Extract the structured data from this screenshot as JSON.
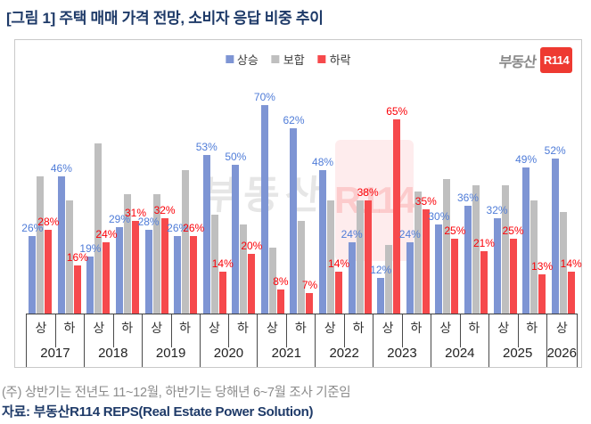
{
  "title": "[그림 1] 주택 매매 가격 전망, 소비자 응답 비중 추이",
  "legend": {
    "items": [
      {
        "label": "상승",
        "color": "#7e95d4"
      },
      {
        "label": "보합",
        "color": "#bfbfbf"
      },
      {
        "label": "하락",
        "color": "#f6494c"
      }
    ]
  },
  "logo": {
    "brand": "부동산",
    "mark": "R114"
  },
  "watermark": {
    "text": "부동산",
    "mark": "R114"
  },
  "chart_data": {
    "type": "bar",
    "unit": "%",
    "gridlines": false,
    "legend_position": "top",
    "ylim": [
      0,
      75
    ],
    "categories": [
      {
        "year": "2017",
        "half": "상"
      },
      {
        "year": "2017",
        "half": "하"
      },
      {
        "year": "2018",
        "half": "상"
      },
      {
        "year": "2018",
        "half": "하"
      },
      {
        "year": "2019",
        "half": "상"
      },
      {
        "year": "2019",
        "half": "하"
      },
      {
        "year": "2020",
        "half": "상"
      },
      {
        "year": "2020",
        "half": "하"
      },
      {
        "year": "2021",
        "half": "상"
      },
      {
        "year": "2021",
        "half": "하"
      },
      {
        "year": "2022",
        "half": "상"
      },
      {
        "year": "2022",
        "half": "하"
      },
      {
        "year": "2023",
        "half": "상"
      },
      {
        "year": "2023",
        "half": "하"
      },
      {
        "year": "2024",
        "half": "상"
      },
      {
        "year": "2024",
        "half": "하"
      },
      {
        "year": "2025",
        "half": "상"
      },
      {
        "year": "2025",
        "half": "하"
      },
      {
        "year": "2026",
        "half": "상"
      }
    ],
    "series": [
      {
        "name": "상승",
        "color": "#7e95d4",
        "label_color": "#4f7cd8",
        "show_labels": true,
        "values": [
          26,
          46,
          19,
          29,
          28,
          26,
          53,
          50,
          70,
          62,
          48,
          24,
          12,
          24,
          30,
          36,
          32,
          49,
          52
        ]
      },
      {
        "name": "보합",
        "color": "#bfbfbf",
        "label_color": "#808080",
        "show_labels": false,
        "values": [
          46,
          38,
          57,
          40,
          40,
          48,
          33,
          30,
          22,
          31,
          38,
          38,
          23,
          41,
          45,
          43,
          43,
          38,
          34
        ]
      },
      {
        "name": "하락",
        "color": "#f6494c",
        "label_color": "#fb0007",
        "show_labels": true,
        "values": [
          28,
          16,
          24,
          31,
          32,
          26,
          14,
          20,
          8,
          7,
          14,
          38,
          65,
          35,
          25,
          21,
          25,
          13,
          14
        ]
      }
    ]
  },
  "footer": {
    "note": "(주) 상반기는 전년도 11~12월, 하반기는 당해년 6~7월 조사 기준임",
    "source": "자료: 부동산R114 REPS(Real Estate Power Solution)"
  }
}
